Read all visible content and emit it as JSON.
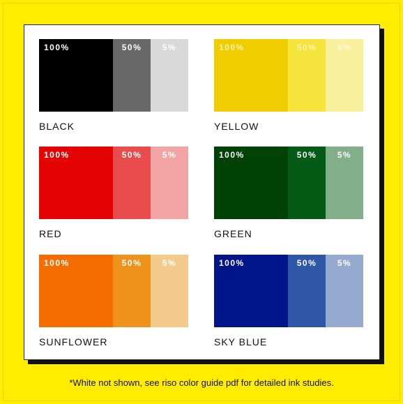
{
  "inks": [
    {
      "name": "BLACK",
      "labels": [
        "100%",
        "50%",
        "5%"
      ],
      "colors": [
        "#000000",
        "#686868",
        "#d9d9d9"
      ],
      "label_colors": [
        "#ffffff",
        "#ffffff",
        "#ffffff"
      ]
    },
    {
      "name": "YELLOW",
      "labels": [
        "100%",
        "50%",
        "5%"
      ],
      "colors": [
        "#f0cd00",
        "#f4e43c",
        "#f8f09c"
      ],
      "label_colors": [
        "#fbf2b0",
        "#fbf2b0",
        "#fdf8d6"
      ]
    },
    {
      "name": "RED",
      "labels": [
        "100%",
        "50%",
        "5%"
      ],
      "colors": [
        "#e30303",
        "#e84c4c",
        "#f2a3a3"
      ],
      "label_colors": [
        "#ffffff",
        "#ffffff",
        "#ffffff"
      ]
    },
    {
      "name": "GREEN",
      "labels": [
        "100%",
        "50%",
        "5%"
      ],
      "colors": [
        "#004205",
        "#045b16",
        "#82ae8a"
      ],
      "label_colors": [
        "#ffffff",
        "#ffffff",
        "#ffffff"
      ]
    },
    {
      "name": "SUNFLOWER",
      "labels": [
        "100%",
        "50%",
        "5%"
      ],
      "colors": [
        "#f56d00",
        "#ee921c",
        "#f4c98c"
      ],
      "label_colors": [
        "#ffffff",
        "#ffffff",
        "#ffffff"
      ]
    },
    {
      "name": "SKY BLUE",
      "labels": [
        "100%",
        "50%",
        "5%"
      ],
      "colors": [
        "#00158a",
        "#2e57a8",
        "#96aad0"
      ],
      "label_colors": [
        "#ffffff",
        "#ffffff",
        "#ffffff"
      ]
    }
  ],
  "footnote": "*White not shown, see riso color guide pdf for detailed ink studies.",
  "background_color": "#ffec00"
}
